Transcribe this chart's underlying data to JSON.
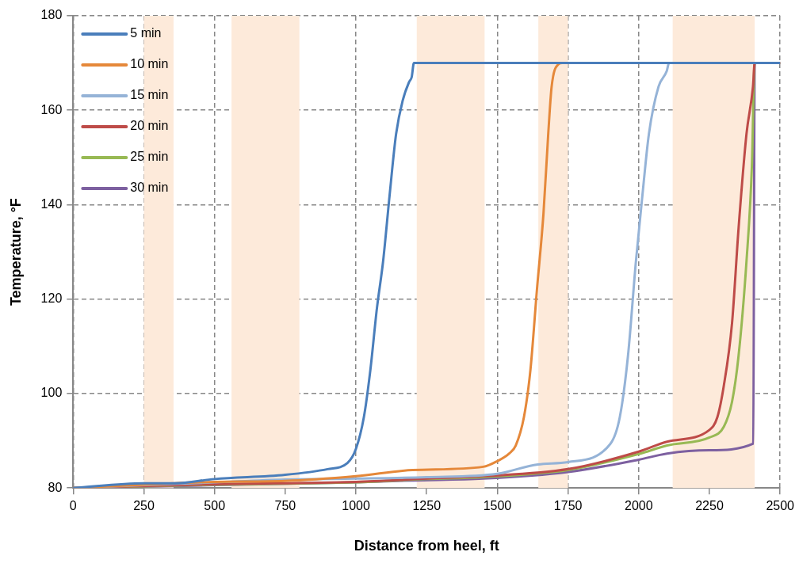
{
  "chart_data": {
    "type": "line",
    "xlabel": "Distance from heel, ft",
    "ylabel": "Temperature, °F",
    "xlim": [
      0,
      2500
    ],
    "xticks": [
      0,
      250,
      500,
      750,
      1000,
      1250,
      1500,
      1750,
      2000,
      2250,
      2500
    ],
    "ylim": [
      80,
      180
    ],
    "yticks": [
      80,
      100,
      120,
      140,
      160,
      180
    ],
    "grid": true,
    "legend": "top left",
    "marker": "none",
    "line_style": "solid",
    "bands": [
      {
        "axis": "x",
        "from": 250,
        "to": 355,
        "color": "#fdeada"
      },
      {
        "axis": "x",
        "from": 560,
        "to": 800,
        "color": "#fdeada"
      },
      {
        "axis": "x",
        "from": 1215,
        "to": 1455,
        "color": "#fdeada"
      },
      {
        "axis": "x",
        "from": 1645,
        "to": 1750,
        "color": "#fdeada"
      },
      {
        "axis": "x",
        "from": 2120,
        "to": 2410,
        "color": "#fdeada"
      }
    ],
    "series": [
      {
        "name": "5 min",
        "color": "#4a7ebb",
        "x": [
          0,
          250,
          360,
          500,
          750,
          900,
          970,
          1000,
          1028,
          1051,
          1074,
          1096,
          1119,
          1142,
          1165,
          1188,
          1197,
          1205,
          2500
        ],
        "values": [
          80,
          81,
          81,
          81.9,
          82.8,
          84,
          85.3,
          88.3,
          95,
          105,
          118,
          128,
          142,
          155,
          162,
          166,
          167,
          170,
          170
        ]
      },
      {
        "name": "10 min",
        "color": "#e5883a",
        "x": [
          0,
          250,
          500,
          750,
          1000,
          1200,
          1450,
          1500,
          1542,
          1565,
          1594,
          1617,
          1640,
          1663,
          1680,
          1692,
          1715,
          1730,
          2500
        ],
        "values": [
          80,
          80.7,
          81.3,
          81.5,
          82.5,
          83.8,
          84.5,
          85.7,
          87.3,
          89,
          95,
          105,
          122,
          138,
          155,
          165,
          169.7,
          170,
          170
        ]
      },
      {
        "name": "15 min",
        "color": "#95b3d7",
        "x": [
          0,
          500,
          750,
          1000,
          1250,
          1500,
          1643,
          1750,
          1899,
          1933,
          1962,
          1990,
          2013,
          2036,
          2070,
          2099,
          2107,
          2500
        ],
        "values": [
          80,
          81.2,
          81.8,
          82,
          82.3,
          83,
          85,
          85.5,
          89.3,
          95,
          108,
          128,
          142,
          155,
          165,
          168.3,
          170,
          170
        ]
      },
      {
        "name": "20 min",
        "color": "#be4b48",
        "x": [
          0,
          500,
          1000,
          1250,
          1450,
          1750,
          2000,
          2100,
          2250,
          2278,
          2301,
          2330,
          2353,
          2381,
          2404,
          2410,
          2500
        ],
        "values": [
          80,
          80.8,
          81.3,
          82,
          82.5,
          84,
          87.7,
          89.8,
          92.3,
          95,
          101.7,
          115,
          135,
          155,
          165,
          170,
          170
        ]
      },
      {
        "name": "25 min",
        "color": "#98b954",
        "x": [
          0,
          500,
          1000,
          1250,
          1450,
          1750,
          2000,
          2100,
          2250,
          2301,
          2330,
          2353,
          2381,
          2400,
          2410,
          2500
        ],
        "values": [
          80,
          80.7,
          81.2,
          81.9,
          82.3,
          83.8,
          87.2,
          89,
          90.7,
          93,
          98.3,
          108,
          128,
          148,
          170,
          170
        ]
      },
      {
        "name": "30 min",
        "color": "#7d60a0",
        "x": [
          0,
          500,
          1000,
          1200,
          1450,
          1750,
          2000,
          2100,
          2250,
          2405,
          2410,
          2500
        ],
        "values": [
          80,
          80.6,
          81.2,
          81.6,
          82,
          83.4,
          86,
          87.3,
          88,
          89.4,
          170,
          170
        ]
      }
    ]
  }
}
